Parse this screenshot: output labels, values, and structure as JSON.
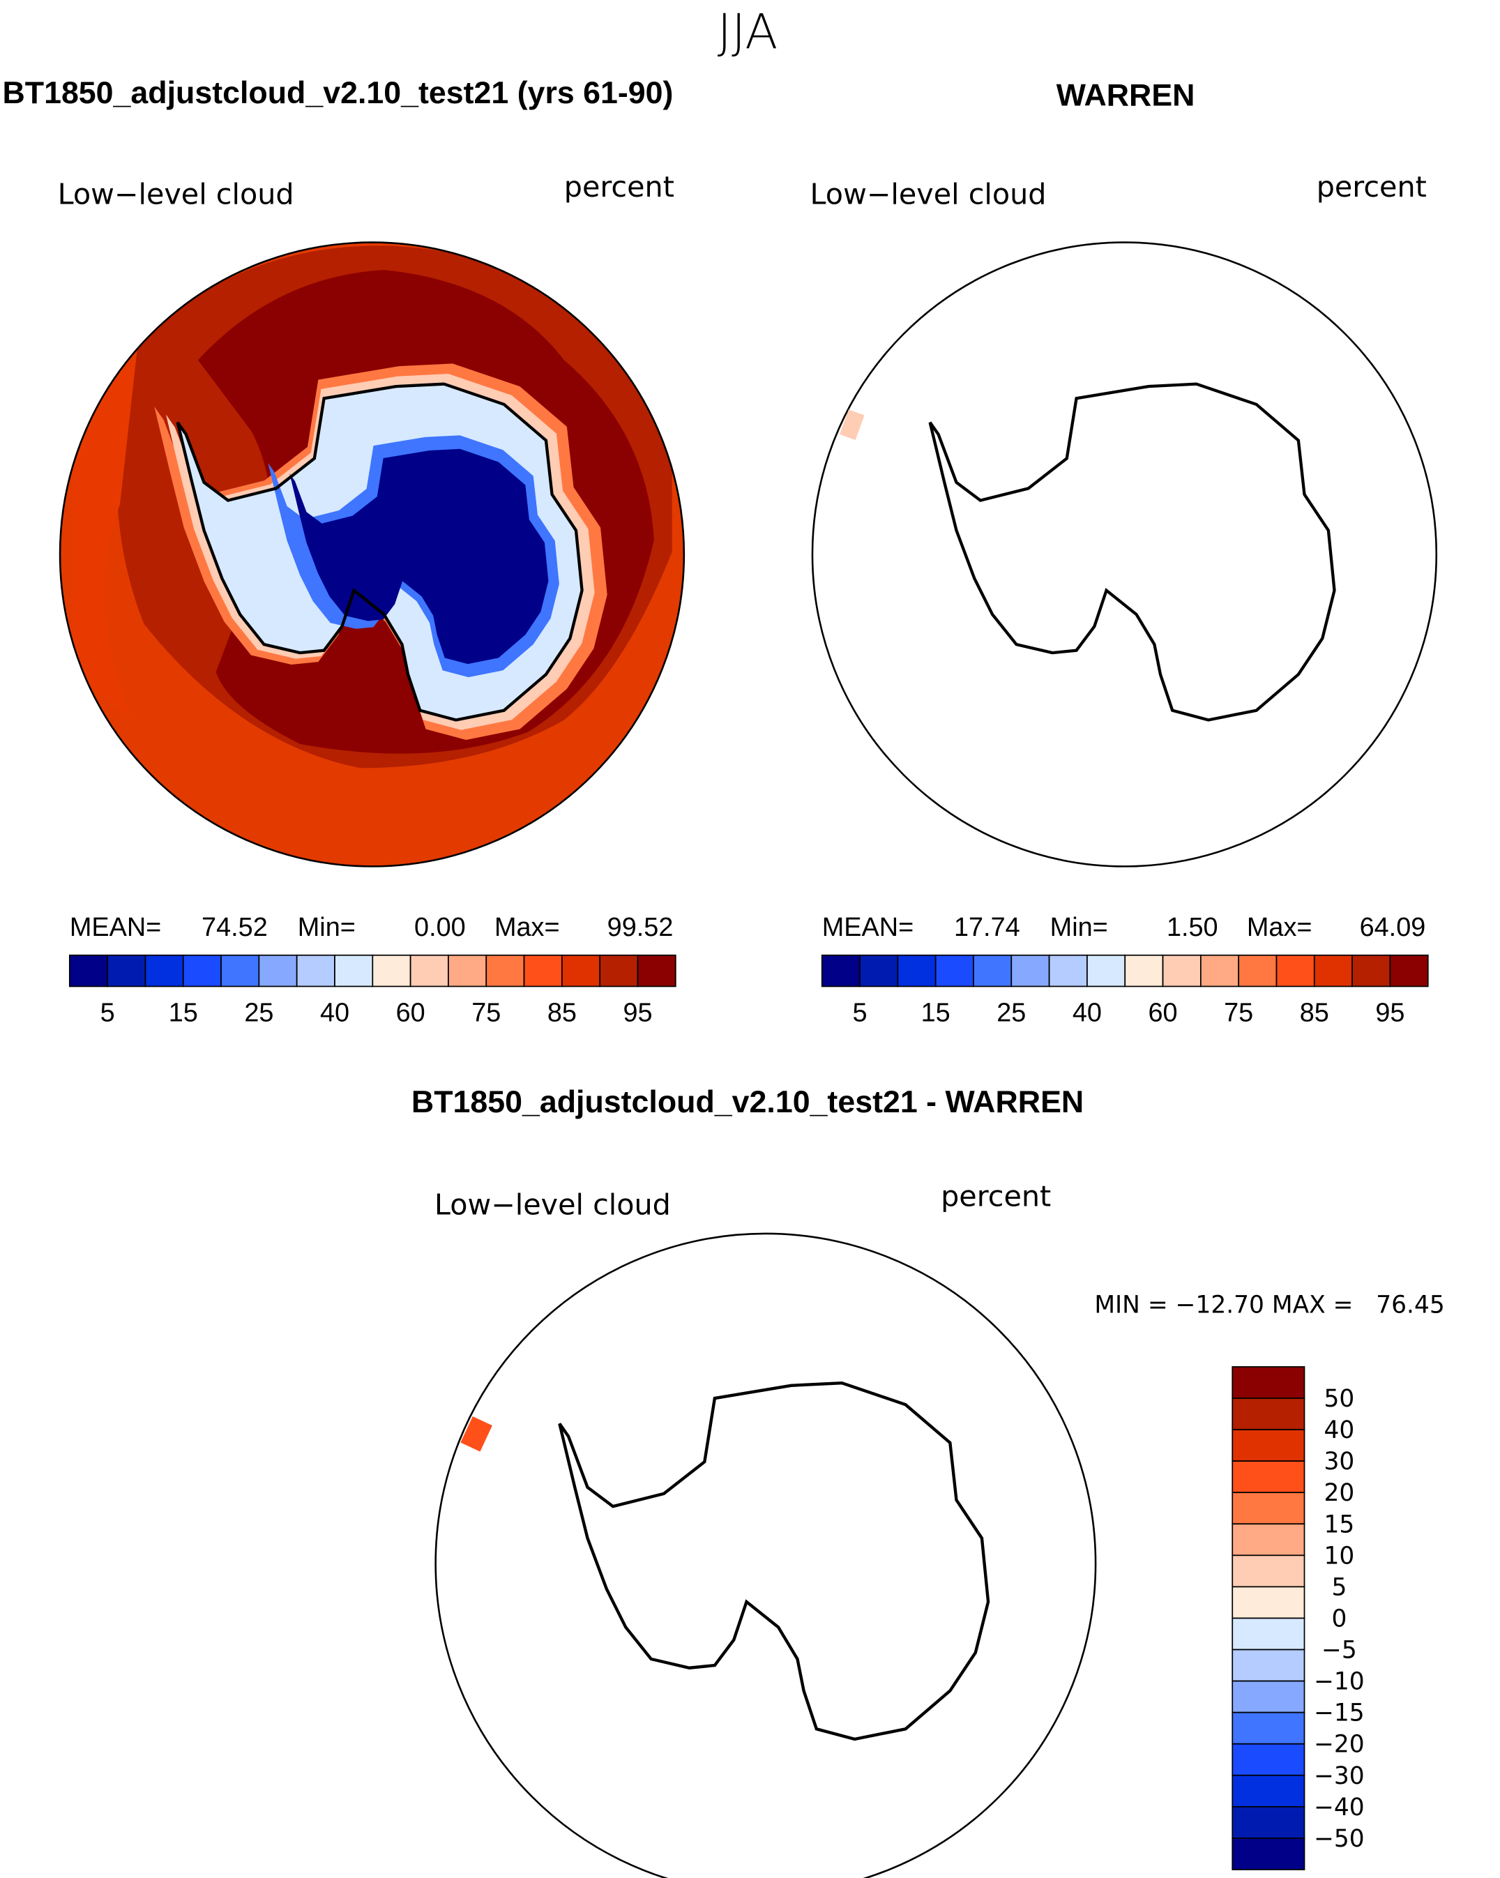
{
  "figure_title": "JJA",
  "panels": [
    {
      "title": "BT1850_adjustcloud_v2.10_test21 (yrs 61-90)",
      "variable": "Low−level cloud",
      "units": "percent",
      "stats": {
        "mean_label": "MEAN=",
        "mean": "74.52",
        "min_label": "Min=",
        "min": "0.00",
        "max_label": "Max=",
        "max": "99.52"
      }
    },
    {
      "title": "WARREN",
      "variable": "Low−level cloud",
      "units": "percent",
      "stats": {
        "mean_label": "MEAN=",
        "mean": "17.74",
        "min_label": "Min=",
        "min": "1.50",
        "max_label": "Max=",
        "max": "64.09"
      }
    },
    {
      "title": "BT1850_adjustcloud_v2.10_test21 - WARREN",
      "variable": "Low−level cloud",
      "units": "percent",
      "stats_text": "MIN = −12.70 MAX =   76.45"
    }
  ],
  "colorbar_abs": {
    "tick_labels": [
      "5",
      "15",
      "25",
      "40",
      "60",
      "75",
      "85",
      "95"
    ],
    "colors": [
      "#000088",
      "#001cb0",
      "#0030e0",
      "#1a4bff",
      "#3f75ff",
      "#86a9ff",
      "#b4ccff",
      "#d6e9ff",
      "#ffebd9",
      "#ffccb4",
      "#ffaa84",
      "#ff7842",
      "#ff501a",
      "#e03200",
      "#b42000",
      "#8b0000"
    ]
  },
  "colorbar_diff": {
    "tick_labels": [
      "50",
      "40",
      "30",
      "20",
      "15",
      "10",
      "5",
      "0",
      "−5",
      "−10",
      "−15",
      "−20",
      "−30",
      "−40",
      "−50"
    ],
    "colors": [
      "#8b0000",
      "#b42000",
      "#e03200",
      "#ff501a",
      "#ff7842",
      "#ffaa84",
      "#ffccb4",
      "#ffebd9",
      "#d6e9ff",
      "#b4ccff",
      "#86a9ff",
      "#3f75ff",
      "#1a4bff",
      "#0030e0",
      "#001cb0",
      "#000088"
    ]
  }
}
